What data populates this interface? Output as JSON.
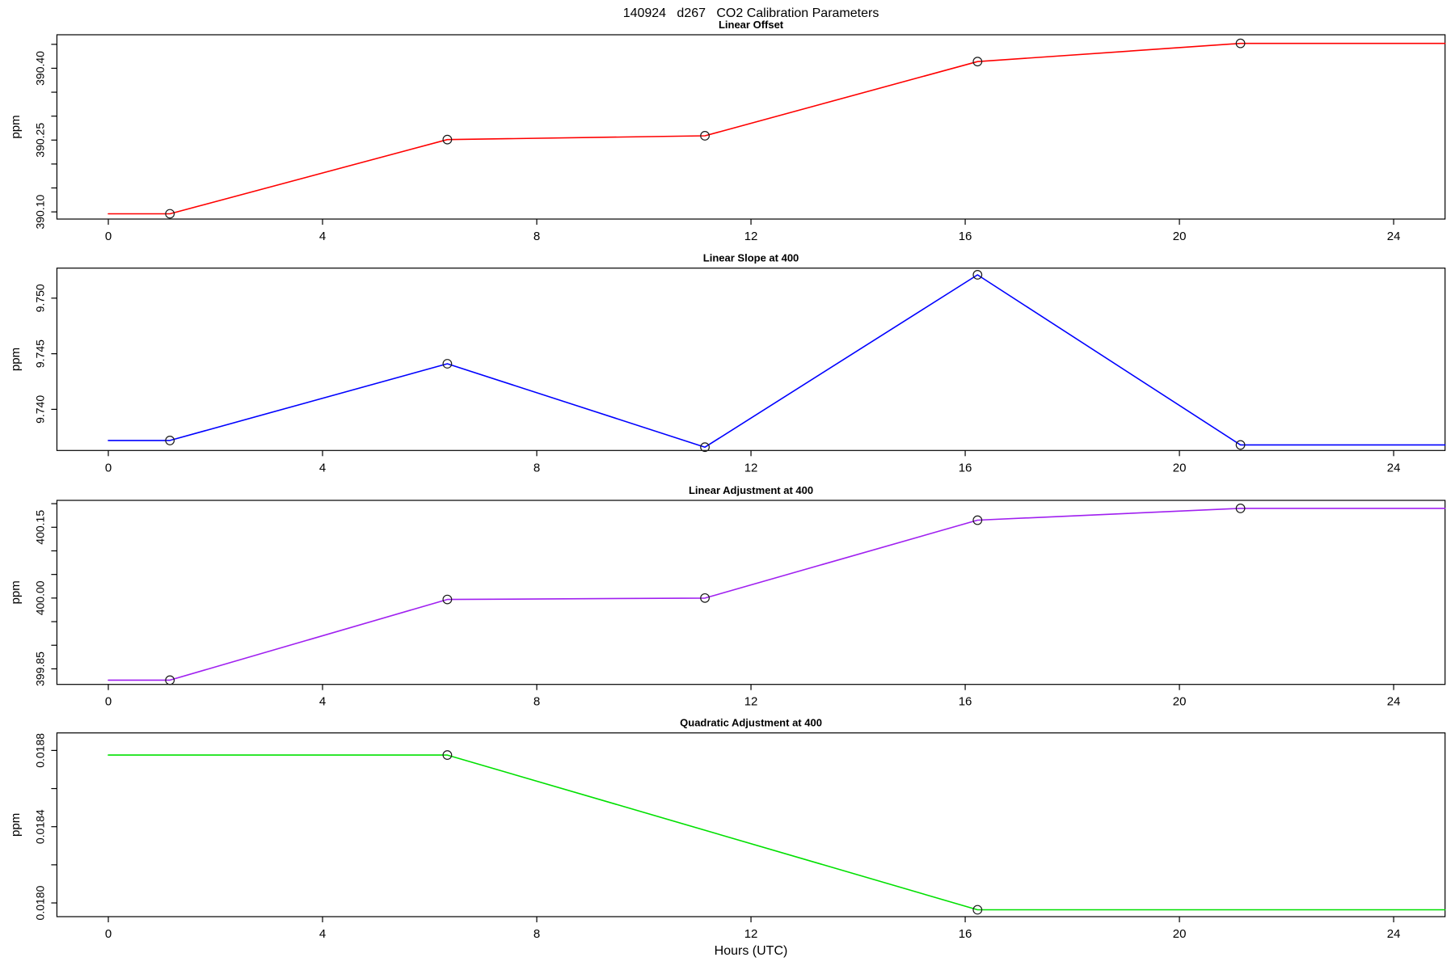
{
  "header": {
    "title": "140924   d267   CO2 Calibration Parameters"
  },
  "chart_data": {
    "type": "line",
    "title": "140924   d267   CO2 Calibration Parameters",
    "xlabel": "Hours (UTC)",
    "xlim": [
      -0.96,
      24.96
    ],
    "x_ticks": [
      0,
      4,
      8,
      12,
      16,
      20,
      24
    ],
    "grid": "off",
    "legend": "none",
    "marker": "open-circle",
    "panels": [
      {
        "title": "Linear Offset",
        "ylabel": "ppm",
        "color": "#ff0000",
        "x": [
          1.15,
          6.33,
          11.14,
          16.23,
          21.14
        ],
        "y": [
          390.096,
          390.251,
          390.259,
          390.414,
          390.452
        ],
        "line_start_x": 0,
        "line_end_x": 24.96,
        "ylim": [
          390.085,
          390.47
        ],
        "yticks": [
          390.1,
          390.15,
          390.2,
          390.25,
          390.3,
          390.35,
          390.4,
          390.45
        ],
        "ytick_labels": [
          "390.10",
          "",
          "",
          "390.25",
          "",
          "",
          "390.40",
          ""
        ]
      },
      {
        "title": "Linear Slope at 400",
        "ylabel": "ppm",
        "color": "#0000ff",
        "x": [
          1.15,
          6.33,
          11.14,
          16.23,
          21.14
        ],
        "y": [
          9.7372,
          9.7441,
          9.7366,
          9.7521,
          9.7368
        ],
        "line_start_x": 0,
        "line_end_x": 24.96,
        "ylim": [
          9.7363,
          9.7527
        ],
        "yticks": [
          9.74,
          9.745,
          9.75
        ],
        "ytick_labels": [
          "9.740",
          "9.745",
          "9.750"
        ]
      },
      {
        "title": "Linear Adjustment at 400",
        "ylabel": "ppm",
        "color": "#a020f0",
        "x": [
          1.15,
          6.33,
          11.14,
          16.23,
          21.14
        ],
        "y": [
          399.826,
          399.997,
          400.0,
          400.165,
          400.19
        ],
        "line_start_x": 0,
        "line_end_x": 24.96,
        "ylim": [
          399.817,
          400.207
        ],
        "yticks": [
          399.85,
          399.9,
          399.95,
          400.0,
          400.05,
          400.1,
          400.15,
          400.2
        ],
        "ytick_labels": [
          "399.85",
          "",
          "",
          "400.00",
          "",
          "",
          "400.15",
          ""
        ]
      },
      {
        "title": "Quadratic Adjustment at 400",
        "ylabel": "ppm",
        "color": "#00e000",
        "x": [
          6.33,
          16.23
        ],
        "y": [
          0.018776,
          0.017964
        ],
        "line_start_x": 0,
        "line_end_x": 24.96,
        "ylim": [
          0.017928,
          0.018892
        ],
        "yticks": [
          0.018,
          0.0182,
          0.0184,
          0.0186,
          0.0188
        ],
        "ytick_labels": [
          "0.0180",
          "",
          "0.0184",
          "",
          "0.0188"
        ]
      }
    ]
  }
}
